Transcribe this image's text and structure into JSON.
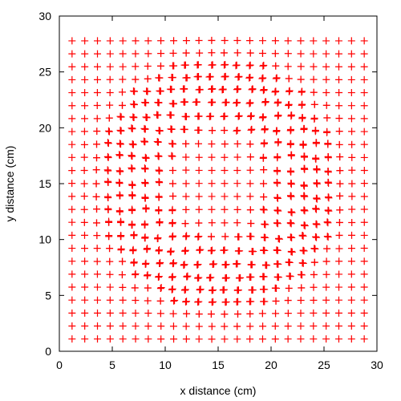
{
  "chart_data": {
    "type": "scatter",
    "title": "",
    "xlabel": "x distance (cm)",
    "ylabel": "y distance (cm)",
    "xlim": [
      0,
      30
    ],
    "ylim": [
      0,
      30
    ],
    "x_ticks": [
      0,
      5,
      10,
      15,
      20,
      25,
      30
    ],
    "y_ticks": [
      0,
      5,
      10,
      15,
      20,
      25,
      30
    ],
    "grid": false,
    "marker": "plus",
    "series": [
      {
        "color": "#ff0000",
        "grid_points": {
          "x_start": 1.2,
          "x_step": 1.2,
          "x_count": 24,
          "y_start": 1.1,
          "y_step": 1.16,
          "y_count": 24
        },
        "distortion_center": [
          15,
          15
        ],
        "distortion_max": 0.35
      }
    ]
  }
}
